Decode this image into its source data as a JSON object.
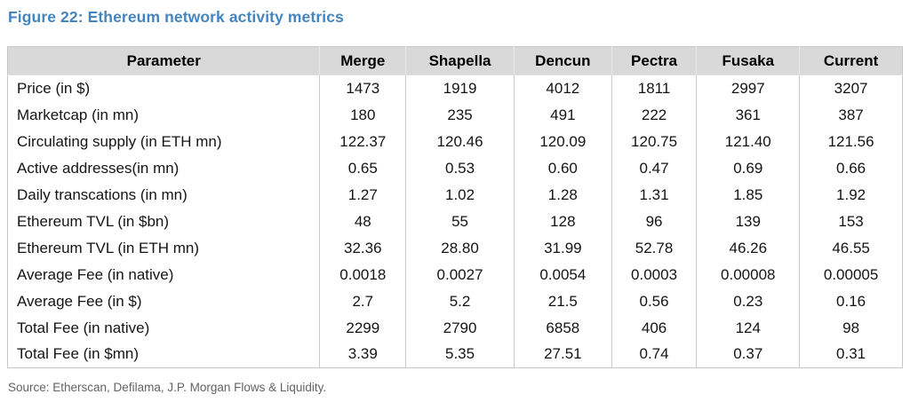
{
  "title": "Figure 22: Ethereum network activity metrics",
  "source": "Source: Etherscan, Defilama, J.P. Morgan Flows & Liquidity.",
  "colors": {
    "title_blue": "#4585BE",
    "header_background": "#D9D9D9",
    "table_border": "#C6C6C6",
    "body_text": "#141414",
    "source_text": "#636363"
  },
  "chart_data": {
    "type": "table",
    "title": "Figure 22: Ethereum network activity metrics",
    "columns": [
      "Parameter",
      "Merge",
      "Shapella",
      "Dencun",
      "Pectra",
      "Fusaka",
      "Current"
    ],
    "rows": [
      {
        "parameter": "Price (in $)",
        "values": [
          "1473",
          "1919",
          "4012",
          "1811",
          "2997",
          "3207"
        ]
      },
      {
        "parameter": "Marketcap (in mn)",
        "values": [
          "180",
          "235",
          "491",
          "222",
          "361",
          "387"
        ]
      },
      {
        "parameter": "Circulating supply (in ETH mn)",
        "values": [
          "122.37",
          "120.46",
          "120.09",
          "120.75",
          "121.40",
          "121.56"
        ]
      },
      {
        "parameter": "Active addresses(in mn)",
        "values": [
          "0.65",
          "0.53",
          "0.60",
          "0.47",
          "0.69",
          "0.66"
        ]
      },
      {
        "parameter": "Daily transcations (in mn)",
        "values": [
          "1.27",
          "1.02",
          "1.28",
          "1.31",
          "1.85",
          "1.92"
        ]
      },
      {
        "parameter": "Ethereum TVL (in $bn)",
        "values": [
          "48",
          "55",
          "128",
          "96",
          "139",
          "153"
        ]
      },
      {
        "parameter": "Ethereum TVL (in ETH mn)",
        "values": [
          "32.36",
          "28.80",
          "31.99",
          "52.78",
          "46.26",
          "46.55"
        ]
      },
      {
        "parameter": "Average Fee (in native)",
        "values": [
          "0.0018",
          "0.0027",
          "0.0054",
          "0.0003",
          "0.00008",
          "0.00005"
        ]
      },
      {
        "parameter": "Average Fee (in $)",
        "values": [
          "2.7",
          "5.2",
          "21.5",
          "0.56",
          "0.23",
          "0.16"
        ]
      },
      {
        "parameter": "Total Fee (in native)",
        "values": [
          "2299",
          "2790",
          "6858",
          "406",
          "124",
          "98"
        ]
      },
      {
        "parameter": "Total Fee (in $mn)",
        "values": [
          "3.39",
          "5.35",
          "27.51",
          "0.74",
          "0.37",
          "0.31"
        ]
      }
    ],
    "source": "Source: Etherscan, Defilama, J.P. Morgan Flows & Liquidity.",
    "layout_hints": {
      "header_row_shaded": true,
      "row_separators": "vertical-only",
      "value_alignment": "center"
    }
  }
}
